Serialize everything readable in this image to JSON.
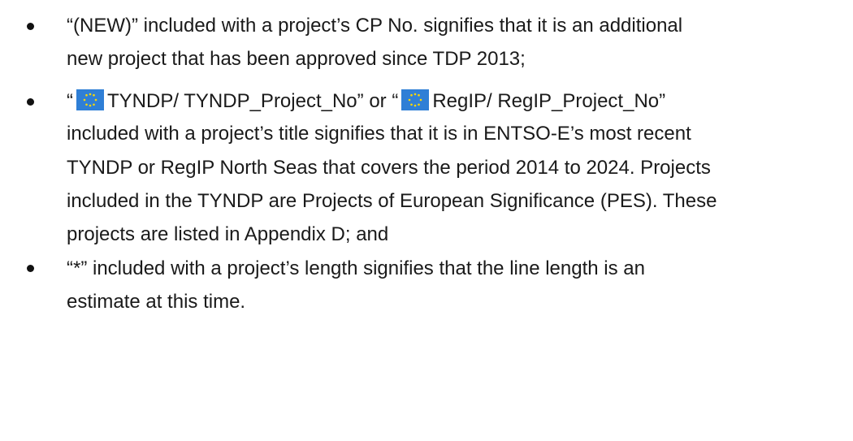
{
  "bullets": [
    {
      "lines": [
        "“(NEW)” included with a project’s CP No. signifies that it is an additional",
        "new project that has been approved since TDP 2013;"
      ]
    },
    {
      "first_line": [
        "“",
        "TYNDP/ TYNDP_Project_No” or “",
        "RegIP/ RegIP_Project_No”"
      ],
      "lines": [
        "included with a project’s title signifies that it is in ENTSO-E’s most recent",
        "TYNDP or RegIP North Seas that covers the period 2014 to 2024. Projects",
        "included in the TYNDP are Projects of European Significance (PES). These",
        "projects are listed in Appendix D; and"
      ]
    },
    {
      "lines": [
        "“*” included with a project’s length signifies that the line length is an",
        "estimate at this time."
      ]
    }
  ]
}
